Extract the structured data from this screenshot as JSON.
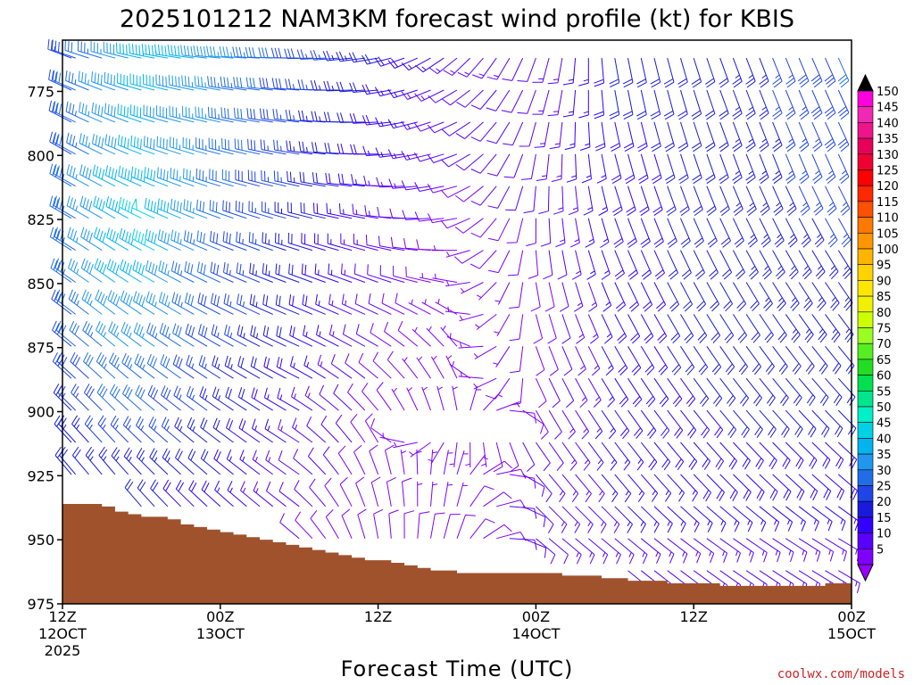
{
  "chart_data": {
    "type": "wind-barb-profile",
    "title": "2025101212 NAM3KM forecast wind profile (kt) for KBIS",
    "xlabel": "Forecast Time (UTC)",
    "ylabel": "",
    "credit": "coolwx.com/models",
    "y_axis": {
      "ticks": [
        775,
        800,
        825,
        850,
        875,
        900,
        925,
        950,
        975
      ],
      "range": [
        755,
        975
      ],
      "inverted": true
    },
    "x_axis": {
      "range_hours": [
        0,
        60
      ],
      "ticks": [
        {
          "hour": 0,
          "line1": "12Z",
          "line2": "12OCT",
          "line3": "2025"
        },
        {
          "hour": 12,
          "line1": "00Z",
          "line2": "13OCT",
          "line3": ""
        },
        {
          "hour": 24,
          "line1": "12Z",
          "line2": "",
          "line3": ""
        },
        {
          "hour": 36,
          "line1": "00Z",
          "line2": "14OCT",
          "line3": ""
        },
        {
          "hour": 48,
          "line1": "12Z",
          "line2": "",
          "line3": ""
        },
        {
          "hour": 60,
          "line1": "00Z",
          "line2": "15OCT",
          "line3": ""
        }
      ]
    },
    "surface_pressure_hpa": [
      936,
      936,
      936,
      937,
      939,
      940,
      941,
      941,
      942,
      944,
      945,
      946,
      947,
      948,
      949,
      950,
      951,
      952,
      953,
      954,
      955,
      956,
      957,
      958,
      958,
      959,
      960,
      961,
      962,
      962,
      963,
      963,
      963,
      963,
      963,
      963,
      963,
      963,
      964,
      964,
      964,
      965,
      965,
      966,
      966,
      966,
      967,
      967,
      967,
      967,
      968,
      968,
      968,
      968,
      968,
      968,
      968,
      968,
      967,
      967,
      966
    ],
    "ground_color": "#a0522d",
    "colorbar": {
      "labels": [
        5,
        10,
        15,
        20,
        25,
        30,
        35,
        40,
        45,
        50,
        55,
        60,
        65,
        70,
        75,
        80,
        85,
        90,
        95,
        100,
        105,
        110,
        115,
        120,
        125,
        130,
        135,
        140,
        145,
        150
      ],
      "colors": [
        "#7f00ff",
        "#5a00ff",
        "#3300ff",
        "#1a1adc",
        "#1f45e8",
        "#1f6ee8",
        "#1f96f0",
        "#00b4f0",
        "#00d2e6",
        "#00f0c8",
        "#00e68c",
        "#00e050",
        "#22dd22",
        "#55ee22",
        "#99ff22",
        "#ccff00",
        "#f0f000",
        "#ffe600",
        "#ffd200",
        "#ffb400",
        "#ff9600",
        "#ff7800",
        "#ff5000",
        "#ff2800",
        "#ff0000",
        "#f00032",
        "#e6005a",
        "#f0148c",
        "#f028b4",
        "#ff00dc"
      ],
      "under_color": "#9900ff",
      "over_color": "#000000"
    },
    "wind_regimes": {
      "levels_hpa": [
        760,
        775,
        800,
        825,
        850,
        875,
        900,
        925,
        950
      ],
      "keyframes": [
        {
          "hour": 0,
          "speed_kt": [
            25,
            28,
            30,
            32,
            30,
            28,
            24,
            20,
            15
          ],
          "dir_deg": [
            290,
            295,
            300,
            300,
            305,
            310,
            315,
            320,
            330
          ]
        },
        {
          "hour": 4,
          "speed_kt": [
            35,
            38,
            40,
            42,
            40,
            36,
            30,
            24,
            18
          ],
          "dir_deg": [
            285,
            290,
            295,
            300,
            305,
            310,
            315,
            320,
            325
          ]
        },
        {
          "hour": 7,
          "speed_kt": [
            45,
            42,
            40,
            48,
            42,
            36,
            30,
            24,
            18
          ],
          "dir_deg": [
            280,
            285,
            290,
            295,
            300,
            305,
            310,
            315,
            320
          ]
        },
        {
          "hour": 12,
          "speed_kt": [
            38,
            36,
            34,
            32,
            30,
            28,
            24,
            20,
            15
          ],
          "dir_deg": [
            275,
            280,
            285,
            290,
            295,
            300,
            305,
            310,
            315
          ]
        },
        {
          "hour": 18,
          "speed_kt": [
            30,
            28,
            26,
            24,
            22,
            20,
            16,
            12,
            10
          ],
          "dir_deg": [
            270,
            275,
            280,
            285,
            290,
            295,
            300,
            305,
            310
          ]
        },
        {
          "hour": 24,
          "speed_kt": [
            22,
            20,
            18,
            14,
            12,
            10,
            8,
            8,
            8
          ],
          "dir_deg": [
            260,
            265,
            270,
            280,
            290,
            300,
            320,
            340,
            350
          ]
        },
        {
          "hour": 30,
          "speed_kt": [
            14,
            12,
            10,
            8,
            6,
            5,
            5,
            6,
            8
          ],
          "dir_deg": [
            230,
            240,
            250,
            260,
            280,
            320,
            350,
            10,
            20
          ]
        },
        {
          "hour": 36,
          "speed_kt": [
            12,
            12,
            12,
            10,
            8,
            8,
            10,
            12,
            12
          ],
          "dir_deg": [
            200,
            200,
            190,
            180,
            170,
            160,
            150,
            140,
            130
          ]
        },
        {
          "hour": 42,
          "speed_kt": [
            20,
            20,
            18,
            18,
            18,
            18,
            18,
            16,
            14
          ],
          "dir_deg": [
            170,
            170,
            165,
            160,
            155,
            150,
            145,
            140,
            130
          ]
        },
        {
          "hour": 50,
          "speed_kt": [
            22,
            22,
            22,
            22,
            22,
            22,
            20,
            18,
            14
          ],
          "dir_deg": [
            160,
            160,
            160,
            155,
            150,
            145,
            140,
            135,
            125
          ]
        },
        {
          "hour": 60,
          "speed_kt": [
            32,
            30,
            28,
            26,
            24,
            22,
            20,
            18,
            14
          ],
          "dir_deg": [
            155,
            155,
            155,
            150,
            145,
            140,
            135,
            130,
            120
          ]
        }
      ]
    }
  }
}
